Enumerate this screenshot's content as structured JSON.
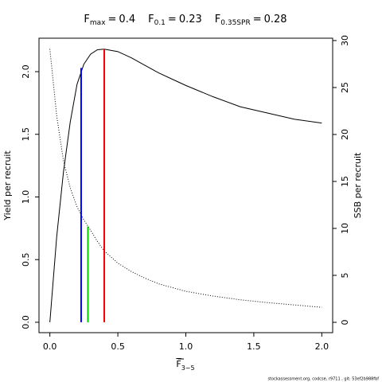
{
  "chart_data": {
    "type": "line",
    "title_parts": [
      {
        "name": "F",
        "subscript": "max",
        "relation": "=",
        "value": 0.4,
        "color": "#ff0000",
        "top": 2.18,
        "top_axis": "y"
      },
      {
        "name": "F",
        "subscript": "0.1",
        "relation": "=",
        "value": 0.23,
        "color": "#0000ff",
        "top": 2.03,
        "top_axis": "y"
      },
      {
        "name": "F",
        "subscript": "0.35SPR",
        "relation": "=",
        "value": 0.28,
        "color": "#00cc00",
        "top": 10.2,
        "top_axis": "y2"
      }
    ],
    "xlabel": {
      "text": "F",
      "subscript": "3−5"
    },
    "ylabel": "Yield per recruit",
    "y2label": "SSB per recruit",
    "source": "stockassessment.org, codcse, r9711 , git: 53ef2b988fbf",
    "x": [
      0,
      0.05,
      0.1,
      0.15,
      0.2,
      0.25,
      0.3,
      0.35,
      0.4,
      0.5,
      0.6,
      0.7,
      0.8,
      0.9,
      1.0,
      1.2,
      1.4,
      1.6,
      1.8,
      2.0
    ],
    "series": [
      {
        "name": "Yield per recruit",
        "color": "#000000",
        "line_style": "solid",
        "axis": "y",
        "values": [
          0,
          0.68,
          1.2,
          1.6,
          1.9,
          2.06,
          2.14,
          2.175,
          2.18,
          2.16,
          2.11,
          2.05,
          1.99,
          1.94,
          1.89,
          1.8,
          1.72,
          1.67,
          1.62,
          1.59
        ]
      },
      {
        "name": "SSB per recruit",
        "color": "#000000",
        "line_style": "dotted",
        "axis": "y2",
        "values": [
          29.1,
          22,
          17.2,
          14.3,
          12.3,
          10.9,
          9.8,
          8.6,
          7.6,
          6.3,
          5.4,
          4.7,
          4.1,
          3.7,
          3.3,
          2.8,
          2.4,
          2.1,
          1.85,
          1.6
        ]
      }
    ],
    "xlim": [
      -0.08,
      2.08
    ],
    "xticks": [
      {
        "value": 0,
        "label": "0.0"
      },
      {
        "value": 0.5,
        "label": "0.5"
      },
      {
        "value": 1,
        "label": "1.0"
      },
      {
        "value": 1.5,
        "label": "1.5"
      },
      {
        "value": 2,
        "label": "2.0"
      }
    ],
    "ylim": [
      -0.083,
      2.267
    ],
    "yticks": [
      {
        "value": 0,
        "label": "0.0"
      },
      {
        "value": 0.5,
        "label": "0.5"
      },
      {
        "value": 1,
        "label": "1.0"
      },
      {
        "value": 1.5,
        "label": "1.5"
      },
      {
        "value": 2,
        "label": "2.0"
      }
    ],
    "y2lim": [
      -1.1,
      30.25
    ],
    "y2ticks": [
      0,
      5,
      10,
      15,
      20,
      25,
      30
    ]
  }
}
